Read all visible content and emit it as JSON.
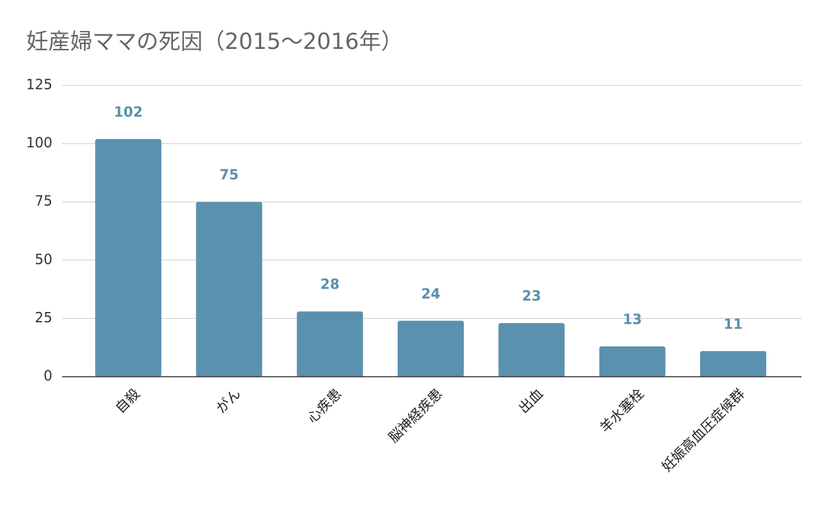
{
  "chart_data": {
    "type": "bar",
    "title": "妊産婦ママの死因（2015～2016年）",
    "categories": [
      "自殺",
      "がん",
      "心疾患",
      "脳神経疾患",
      "出血",
      "羊水塞栓",
      "妊娠高血圧症候群"
    ],
    "values": [
      102,
      75,
      28,
      24,
      23,
      13,
      11
    ],
    "color": "#5b91ae",
    "ylim": [
      0,
      125
    ],
    "yticks": [
      0,
      25,
      50,
      75,
      100,
      125
    ],
    "grid": true
  }
}
